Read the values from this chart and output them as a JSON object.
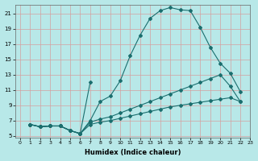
{
  "xlabel": "Humidex (Indice chaleur)",
  "bg_color": "#b8e8e8",
  "grid_color": "#d4a0a0",
  "line_color": "#1a6e6e",
  "xlim": [
    -0.5,
    23
  ],
  "ylim": [
    4.8,
    22.2
  ],
  "xticks": [
    0,
    1,
    2,
    3,
    4,
    5,
    6,
    7,
    8,
    9,
    10,
    11,
    12,
    13,
    14,
    15,
    16,
    17,
    18,
    19,
    20,
    21,
    22,
    23
  ],
  "yticks": [
    5,
    7,
    9,
    11,
    13,
    15,
    17,
    19,
    21
  ],
  "lines": [
    {
      "x": [
        1,
        2,
        3,
        4,
        5,
        6,
        7,
        8,
        9,
        10,
        11,
        12,
        13,
        14,
        15,
        16,
        17,
        18,
        19,
        20,
        21,
        22
      ],
      "y": [
        6.5,
        6.2,
        6.3,
        6.3,
        5.7,
        5.3,
        7.0,
        9.5,
        10.2,
        12.2,
        15.5,
        18.2,
        20.4,
        21.4,
        21.8,
        21.5,
        21.4,
        19.2,
        16.6,
        14.5,
        13.2,
        10.8
      ]
    },
    {
      "x": [
        1,
        2,
        3,
        4,
        5,
        6,
        7,
        8,
        9,
        10,
        11,
        12,
        13,
        14,
        15,
        16,
        17,
        18,
        19,
        20,
        21,
        22
      ],
      "y": [
        6.5,
        6.2,
        6.3,
        6.3,
        5.7,
        5.3,
        6.8,
        7.2,
        7.5,
        8.0,
        8.5,
        9.0,
        9.5,
        10.0,
        10.5,
        11.0,
        11.5,
        12.0,
        12.5,
        13.0,
        11.5,
        9.5
      ]
    },
    {
      "x": [
        1,
        2,
        3,
        4,
        5,
        6,
        7,
        8,
        9,
        10,
        11,
        12,
        13,
        14,
        15,
        16,
        17,
        18,
        19,
        20,
        21,
        22
      ],
      "y": [
        6.5,
        6.2,
        6.3,
        6.3,
        5.7,
        5.3,
        6.5,
        6.8,
        7.0,
        7.3,
        7.6,
        7.9,
        8.2,
        8.5,
        8.8,
        9.0,
        9.2,
        9.4,
        9.6,
        9.8,
        10.0,
        9.5
      ]
    },
    {
      "x": [
        1,
        2,
        3,
        4,
        5,
        6,
        7
      ],
      "y": [
        6.5,
        6.2,
        6.3,
        6.3,
        5.7,
        5.3,
        12.0
      ]
    }
  ]
}
